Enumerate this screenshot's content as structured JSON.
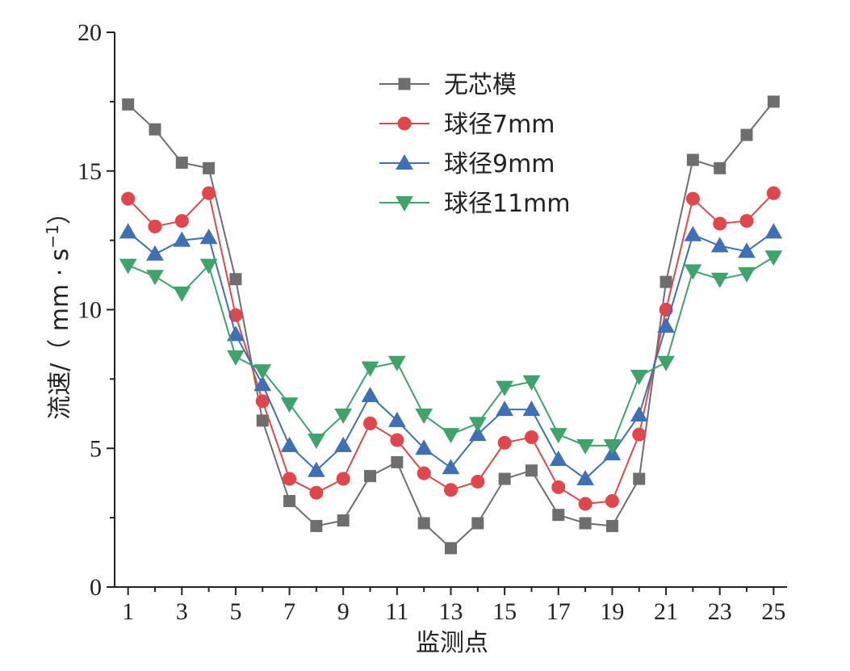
{
  "chart_data": {
    "type": "line",
    "title": "",
    "xlabel": "监测点",
    "ylabel_main": "流速/（ mm · s",
    "ylabel_sup": "−1",
    "ylabel_close": "）",
    "xlim": [
      0.5,
      25.5
    ],
    "ylim": [
      0,
      20
    ],
    "x_ticks": [
      "1",
      "3",
      "5",
      "7",
      "9",
      "11",
      "13",
      "15",
      "17",
      "19",
      "21",
      "23",
      "25"
    ],
    "y_ticks": [
      "0",
      "5",
      "10",
      "15",
      "20"
    ],
    "grid": false,
    "legend_position": "top-center",
    "x": [
      1,
      2,
      3,
      4,
      5,
      6,
      7,
      8,
      9,
      10,
      11,
      12,
      13,
      14,
      15,
      16,
      17,
      18,
      19,
      20,
      21,
      22,
      23,
      24,
      25
    ],
    "series": [
      {
        "name": "无芯模",
        "marker": "square",
        "color": "#6e6e6e",
        "values": [
          17.4,
          16.5,
          15.3,
          15.1,
          11.1,
          6.0,
          3.1,
          2.2,
          2.4,
          4.0,
          4.5,
          2.3,
          1.4,
          2.3,
          3.9,
          4.2,
          2.6,
          2.3,
          2.2,
          3.9,
          11.0,
          15.4,
          15.1,
          16.3,
          17.5
        ]
      },
      {
        "name": "球径7mm",
        "marker": "circle",
        "color": "#e0474c",
        "values": [
          14.0,
          13.0,
          13.2,
          14.2,
          9.8,
          6.7,
          3.9,
          3.4,
          3.9,
          5.9,
          5.3,
          4.1,
          3.5,
          3.8,
          5.2,
          5.4,
          3.6,
          3.0,
          3.1,
          5.5,
          10.0,
          14.0,
          13.1,
          13.2,
          14.2
        ]
      },
      {
        "name": "球径9mm",
        "marker": "triangle-up",
        "color": "#3f6fb5",
        "values": [
          12.8,
          12.0,
          12.5,
          12.6,
          9.1,
          7.3,
          5.1,
          4.2,
          5.1,
          6.9,
          6.0,
          5.0,
          4.3,
          5.5,
          6.4,
          6.4,
          4.6,
          3.9,
          4.8,
          6.2,
          9.4,
          12.7,
          12.3,
          12.1,
          12.8
        ]
      },
      {
        "name": "球径11mm",
        "marker": "triangle-down",
        "color": "#3fa36b",
        "values": [
          11.6,
          11.2,
          10.6,
          11.6,
          8.3,
          7.8,
          6.6,
          5.3,
          6.2,
          7.9,
          8.1,
          6.2,
          5.5,
          5.9,
          7.2,
          7.4,
          5.5,
          5.1,
          5.1,
          7.6,
          8.1,
          11.4,
          11.1,
          11.3,
          11.9
        ]
      }
    ]
  }
}
